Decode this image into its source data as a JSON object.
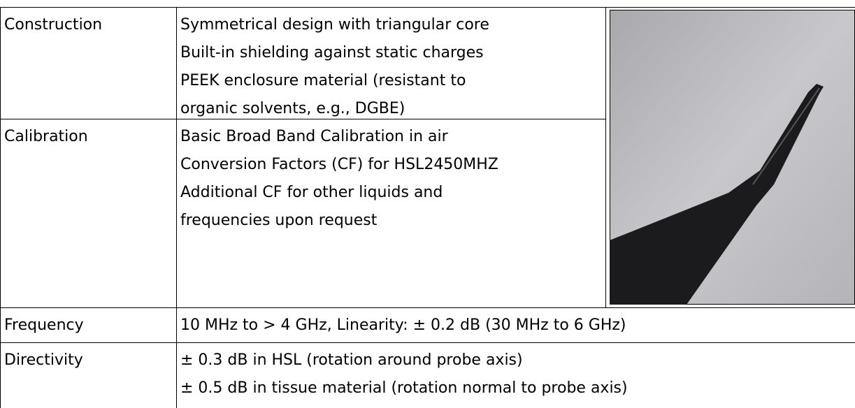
{
  "table": {
    "rows": [
      {
        "label": "Construction",
        "lines": [
          "Symmetrical design with triangular core",
          "Built-in shielding against static charges",
          "PEEK enclosure material (resistant to",
          "organic solvents, e.g., DGBE)"
        ]
      },
      {
        "label": "Calibration",
        "lines": [
          "Basic Broad Band Calibration in air",
          "Conversion Factors (CF) for HSL2450MHZ",
          "Additional CF for other liquids and",
          "frequencies upon request"
        ]
      },
      {
        "label": "Frequency",
        "lines": [
          "10 MHz to > 4 GHz, Linearity: ± 0.2 dB (30 MHz to 6 GHz)"
        ]
      },
      {
        "label": "Directivity",
        "lines": [
          "± 0.3 dB in HSL (rotation around probe axis)",
          "± 0.5 dB in tissue material (rotation normal to probe axis)"
        ]
      }
    ]
  }
}
